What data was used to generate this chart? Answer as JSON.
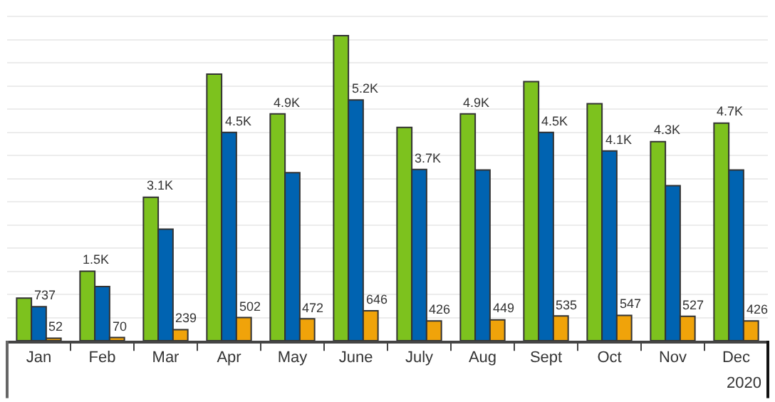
{
  "chart_data": {
    "type": "bar",
    "categories": [
      "Jan",
      "Feb",
      "Mar",
      "Apr",
      "May",
      "June",
      "July",
      "Aug",
      "Sept",
      "Oct",
      "Nov",
      "Dec"
    ],
    "series": [
      {
        "color": "#7dc21e",
        "values": [
          920,
          1500,
          3100,
          5760,
          4900,
          6590,
          4610,
          4900,
          5600,
          5120,
          4300,
          4700
        ],
        "value_labels": [
          null,
          "1.5K",
          "3.1K",
          null,
          "4.9K",
          null,
          null,
          "4.9K",
          null,
          null,
          "4.3K",
          "4.7K"
        ]
      },
      {
        "color": "#0063b1",
        "values": [
          737,
          1170,
          2410,
          4500,
          3630,
          5200,
          3700,
          3690,
          4500,
          4100,
          3350,
          3690
        ],
        "value_labels": [
          "737",
          null,
          null,
          "4.5K",
          null,
          "5.2K",
          "3.7K",
          null,
          "4.5K",
          "4.1K",
          null,
          null
        ]
      },
      {
        "color": "#f0a30a",
        "values": [
          52,
          70,
          239,
          502,
          472,
          646,
          426,
          449,
          535,
          547,
          527,
          426
        ],
        "value_labels": [
          "52",
          "70",
          "239",
          "502",
          "472",
          "646",
          "426",
          "449",
          "535",
          "547",
          "527",
          "426"
        ]
      }
    ],
    "ylim": [
      0,
      7300
    ],
    "yticks": [
      {
        "value": 500,
        "label": null
      },
      {
        "value": 1000,
        "label": null
      },
      {
        "value": 1500,
        "label": null
      },
      {
        "value": 2000,
        "label": null
      },
      {
        "value": 2500,
        "label": null
      },
      {
        "value": 3000,
        "label": null
      },
      {
        "value": 3500,
        "label": null
      },
      {
        "value": 4000,
        "label": null
      },
      {
        "value": 4500,
        "label": null
      },
      {
        "value": 5000,
        "label": null
      },
      {
        "value": 5500,
        "label": null
      },
      {
        "value": 6000,
        "label": null
      },
      {
        "value": 6500,
        "label": null
      },
      {
        "value": 7000,
        "label": null
      }
    ],
    "grid": "y",
    "tick_labels": "x",
    "annotations": [
      "2020"
    ]
  }
}
